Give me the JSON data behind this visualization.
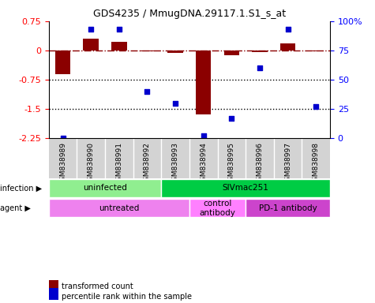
{
  "title": "GDS4235 / MmugDNA.29117.1.S1_s_at",
  "samples": [
    "GSM838989",
    "GSM838990",
    "GSM838991",
    "GSM838992",
    "GSM838993",
    "GSM838994",
    "GSM838995",
    "GSM838996",
    "GSM838997",
    "GSM838998"
  ],
  "bar_values": [
    -0.62,
    0.3,
    0.22,
    -0.03,
    -0.06,
    -1.65,
    -0.12,
    -0.05,
    0.18,
    -0.02
  ],
  "dot_values": [
    0,
    93,
    93,
    40,
    30,
    2,
    17,
    60,
    93,
    27
  ],
  "ylim_left": [
    -2.25,
    0.75
  ],
  "ylim_right": [
    0,
    100
  ],
  "yticks_left": [
    0.75,
    0,
    -0.75,
    -1.5,
    -2.25
  ],
  "yticks_right": [
    100,
    75,
    50,
    25,
    0
  ],
  "hline_y": 0,
  "dotted_lines": [
    -0.75,
    -1.5
  ],
  "bar_color": "#8B0000",
  "dot_color": "#0000CD",
  "infection_labels": [
    {
      "text": "uninfected",
      "start": 0,
      "end": 4,
      "color": "#90EE90"
    },
    {
      "text": "SIVmac251",
      "start": 4,
      "end": 10,
      "color": "#00CC44"
    }
  ],
  "agent_labels": [
    {
      "text": "untreated",
      "start": 0,
      "end": 5,
      "color": "#EE82EE"
    },
    {
      "text": "control\nantibody",
      "start": 5,
      "end": 7,
      "color": "#FF80FF"
    },
    {
      "text": "PD-1 antibody",
      "start": 7,
      "end": 10,
      "color": "#CC44CC"
    }
  ],
  "legend_bar_label": "transformed count",
  "legend_dot_label": "percentile rank within the sample",
  "infection_tag": "infection",
  "agent_tag": "agent"
}
